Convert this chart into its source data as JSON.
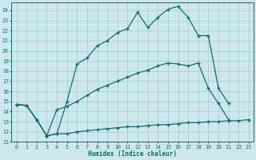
{
  "xlabel": "Humidex (Indice chaleur)",
  "background_color": "#cce8ec",
  "grid_color": "#aacdd4",
  "line_color": "#1a6b6b",
  "xlim": [
    -0.5,
    23.5
  ],
  "ylim": [
    11,
    24.8
  ],
  "xticks": [
    0,
    1,
    2,
    3,
    4,
    5,
    6,
    7,
    8,
    9,
    10,
    11,
    12,
    13,
    14,
    15,
    16,
    17,
    18,
    19,
    20,
    21,
    22,
    23
  ],
  "yticks": [
    11,
    12,
    13,
    14,
    15,
    16,
    17,
    18,
    19,
    20,
    21,
    22,
    23,
    24
  ],
  "line1_x": [
    0,
    1,
    2,
    3,
    4,
    5,
    6,
    7,
    8,
    9,
    10,
    11,
    12,
    13,
    14,
    15,
    16,
    17,
    18,
    19,
    20,
    21
  ],
  "line1_y": [
    14.7,
    14.6,
    13.2,
    11.6,
    11.8,
    15.0,
    18.7,
    19.3,
    20.5,
    21.0,
    21.8,
    22.2,
    23.8,
    22.3,
    23.3,
    24.1,
    24.4,
    23.3,
    21.5,
    21.5,
    16.3,
    14.8
  ],
  "line2_x": [
    0,
    1,
    2,
    3,
    4,
    5,
    6,
    7,
    8,
    9,
    10,
    11,
    12,
    13,
    14,
    15,
    16,
    17,
    18,
    19,
    20,
    21,
    22,
    23
  ],
  "line2_y": [
    14.7,
    14.6,
    13.2,
    11.6,
    14.2,
    14.5,
    15.0,
    15.6,
    16.2,
    16.6,
    17.0,
    17.4,
    17.8,
    18.1,
    18.5,
    18.8,
    18.7,
    18.5,
    18.8,
    16.3,
    14.8,
    13.2,
    null,
    null
  ],
  "line3_x": [
    0,
    1,
    2,
    3,
    4,
    5,
    6,
    7,
    8,
    9,
    10,
    11,
    12,
    13,
    14,
    15,
    16,
    17,
    18,
    19,
    20,
    21,
    22,
    23
  ],
  "line3_y": [
    14.7,
    14.6,
    13.2,
    11.6,
    11.8,
    11.8,
    12.0,
    12.1,
    12.2,
    12.3,
    12.4,
    12.5,
    12.5,
    12.6,
    12.7,
    12.7,
    12.8,
    12.9,
    12.9,
    13.0,
    13.0,
    13.1,
    13.1,
    13.2
  ]
}
